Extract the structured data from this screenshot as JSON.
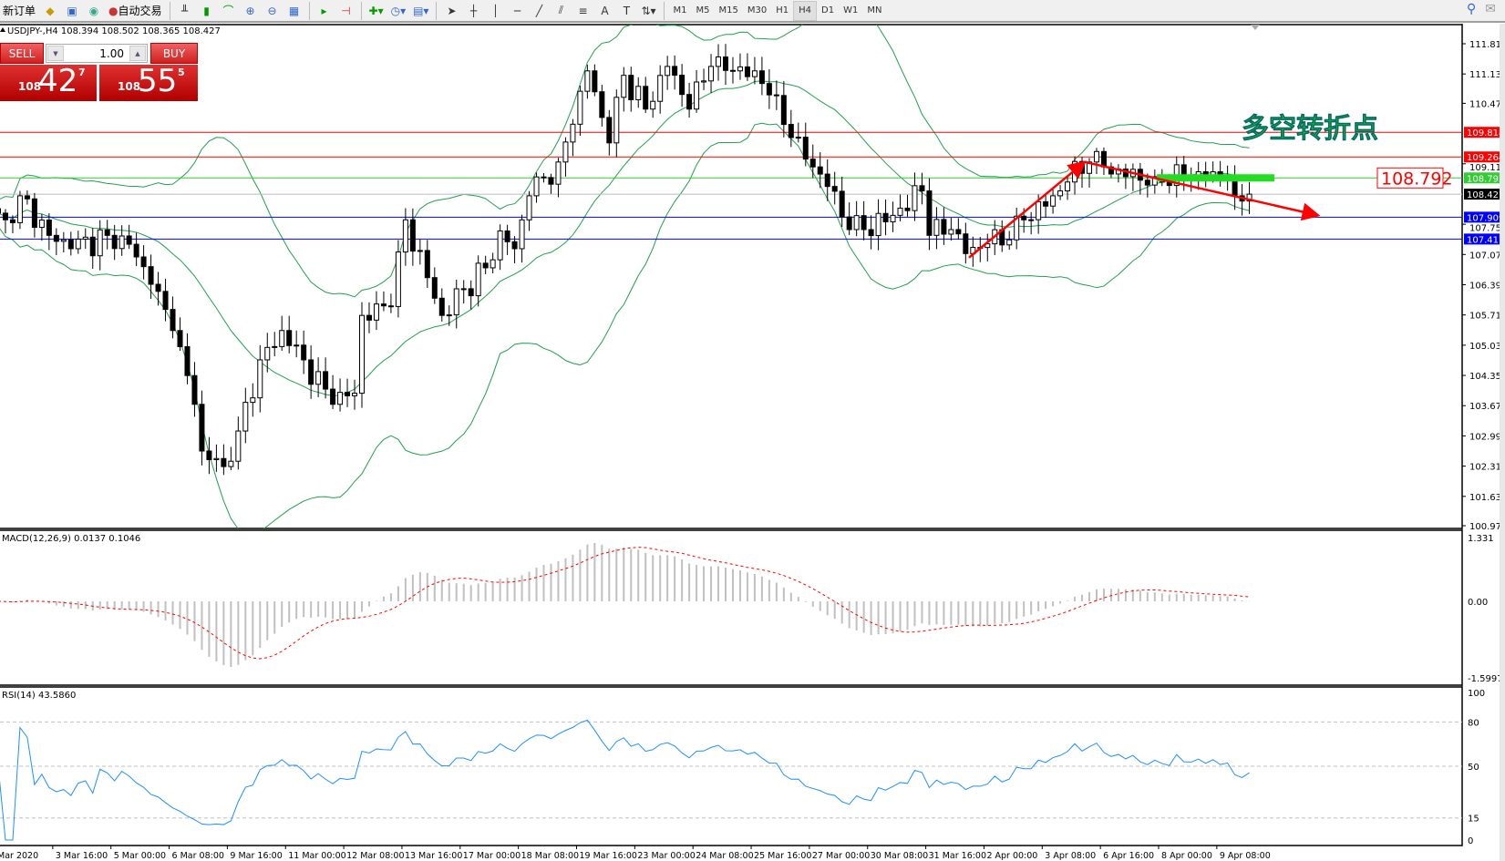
{
  "toolbar": {
    "new_order": "新订单",
    "auto_trading": "自动交易",
    "timeframes": [
      "M1",
      "M5",
      "M15",
      "M30",
      "H1",
      "H4",
      "D1",
      "W1",
      "MN"
    ],
    "selected_timeframe": "H4"
  },
  "chart_header": "USDJPY-,H4  108.394 108.502 108.365 108.427",
  "one_click": {
    "sell": "SELL",
    "buy": "BUY",
    "lot": "1.00",
    "bid_prefix": "108",
    "bid_big": "42",
    "bid_sup": "7",
    "ask_prefix": "108",
    "ask_big": "55",
    "ask_sup": "5"
  },
  "annotation_text": "多空转折点",
  "annotation_price": "108.792",
  "colors": {
    "bands": "#20a050",
    "bear": "#000000",
    "bull": "#ffffff",
    "res": "#ff0000",
    "sup": "#0000ff",
    "level": "#33cc33",
    "arrow": "#ff0000",
    "macd_signal": "#ff0000",
    "rsi": "#1e90ff"
  },
  "chart_data": [
    {
      "type": "candlestick",
      "symbol": "USDJPY-",
      "timeframe": "H4",
      "indicator": "Bollinger Bands",
      "ylim": [
        100.97,
        111.81
      ],
      "y_ticks": [
        "111.810",
        "111.130",
        "110.470",
        "109.110",
        "107.750",
        "107.070",
        "106.390",
        "105.710",
        "105.030",
        "104.350",
        "103.670",
        "102.990",
        "102.310",
        "101.630",
        "100.970"
      ],
      "x_ticks": [
        "Mar 2020",
        "3 Mar 16:00",
        "5 Mar 00:00",
        "6 Mar 08:00",
        "9 Mar 16:00",
        "11 Mar 00:00",
        "12 Mar 08:00",
        "13 Mar 16:00",
        "17 Mar 00:00",
        "18 Mar 08:00",
        "19 Mar 16:00",
        "23 Mar 00:00",
        "24 Mar 08:00",
        "25 Mar 16:00",
        "27 Mar 00:00",
        "30 Mar 08:00",
        "31 Mar 16:00",
        "2 Apr 00:00",
        "3 Apr 08:00",
        "6 Apr 16:00",
        "8 Apr 00:00",
        "9 Apr 08:00"
      ],
      "close_keypoints": [
        [
          0,
          108.0
        ],
        [
          1,
          107.85
        ],
        [
          3,
          108.39
        ],
        [
          7,
          107.5
        ],
        [
          10,
          107.2
        ],
        [
          15,
          107.5
        ],
        [
          18,
          107.3
        ],
        [
          21,
          106.4
        ],
        [
          24,
          105.36
        ],
        [
          27,
          103.7
        ],
        [
          28,
          102.65
        ],
        [
          31,
          102.3
        ],
        [
          33,
          103.1
        ],
        [
          36,
          104.7
        ],
        [
          39,
          105.36
        ],
        [
          42,
          104.7
        ],
        [
          46,
          103.7
        ],
        [
          49,
          103.95
        ],
        [
          50,
          105.7
        ],
        [
          54,
          105.9
        ],
        [
          56,
          107.85
        ],
        [
          59,
          106.55
        ],
        [
          61,
          105.7
        ],
        [
          64,
          106.3
        ],
        [
          67,
          106.77
        ],
        [
          69,
          107.6
        ],
        [
          71,
          107.2
        ],
        [
          73,
          108.39
        ],
        [
          77,
          109.15
        ],
        [
          79,
          110.0
        ],
        [
          81,
          111.2
        ],
        [
          84,
          109.58
        ],
        [
          86,
          111.1
        ],
        [
          89,
          110.34
        ],
        [
          92,
          111.3
        ],
        [
          95,
          110.34
        ],
        [
          98,
          111.3
        ],
        [
          101,
          111.2
        ],
        [
          104,
          111.2
        ],
        [
          106,
          110.66
        ],
        [
          109,
          109.7
        ],
        [
          112,
          109.04
        ],
        [
          114,
          108.6
        ],
        [
          117,
          107.63
        ],
        [
          119,
          107.63
        ],
        [
          123,
          107.95
        ],
        [
          127,
          108.5
        ],
        [
          128,
          107.5
        ],
        [
          131,
          107.63
        ],
        [
          133,
          107.09
        ],
        [
          136,
          107.31
        ],
        [
          139,
          107.4
        ],
        [
          141,
          107.85
        ],
        [
          145,
          108.39
        ],
        [
          147,
          108.7
        ],
        [
          150,
          109.15
        ],
        [
          152,
          109.04
        ],
        [
          155,
          108.82
        ],
        [
          159,
          108.82
        ],
        [
          163,
          108.82
        ],
        [
          167,
          108.93
        ],
        [
          169,
          108.82
        ],
        [
          170,
          108.39
        ],
        [
          172,
          108.427
        ]
      ],
      "levels": [
        {
          "price": "109.818",
          "color": "#ff0000"
        },
        {
          "price": "109.264",
          "color": "#ff0000"
        },
        {
          "price": "108.792",
          "color": "#33cc33"
        },
        {
          "price": "108.427",
          "color": "#000000",
          "bid": true
        },
        {
          "price": "107.909",
          "color": "#0000ff"
        },
        {
          "price": "107.417",
          "color": "#0000ff"
        }
      ]
    },
    {
      "type": "bar+line",
      "title": "MACD(12,26,9) 0.0137 0.1046",
      "ylim": [
        -1.5997,
        1.331
      ],
      "y_ticks": [
        "1.331",
        "0.00",
        "-1.5997"
      ]
    },
    {
      "type": "line",
      "title": "RSI(14) 43.5860",
      "ylim": [
        0,
        100
      ],
      "y_ticks": [
        "100",
        "80",
        "50",
        "15",
        "0"
      ]
    }
  ]
}
